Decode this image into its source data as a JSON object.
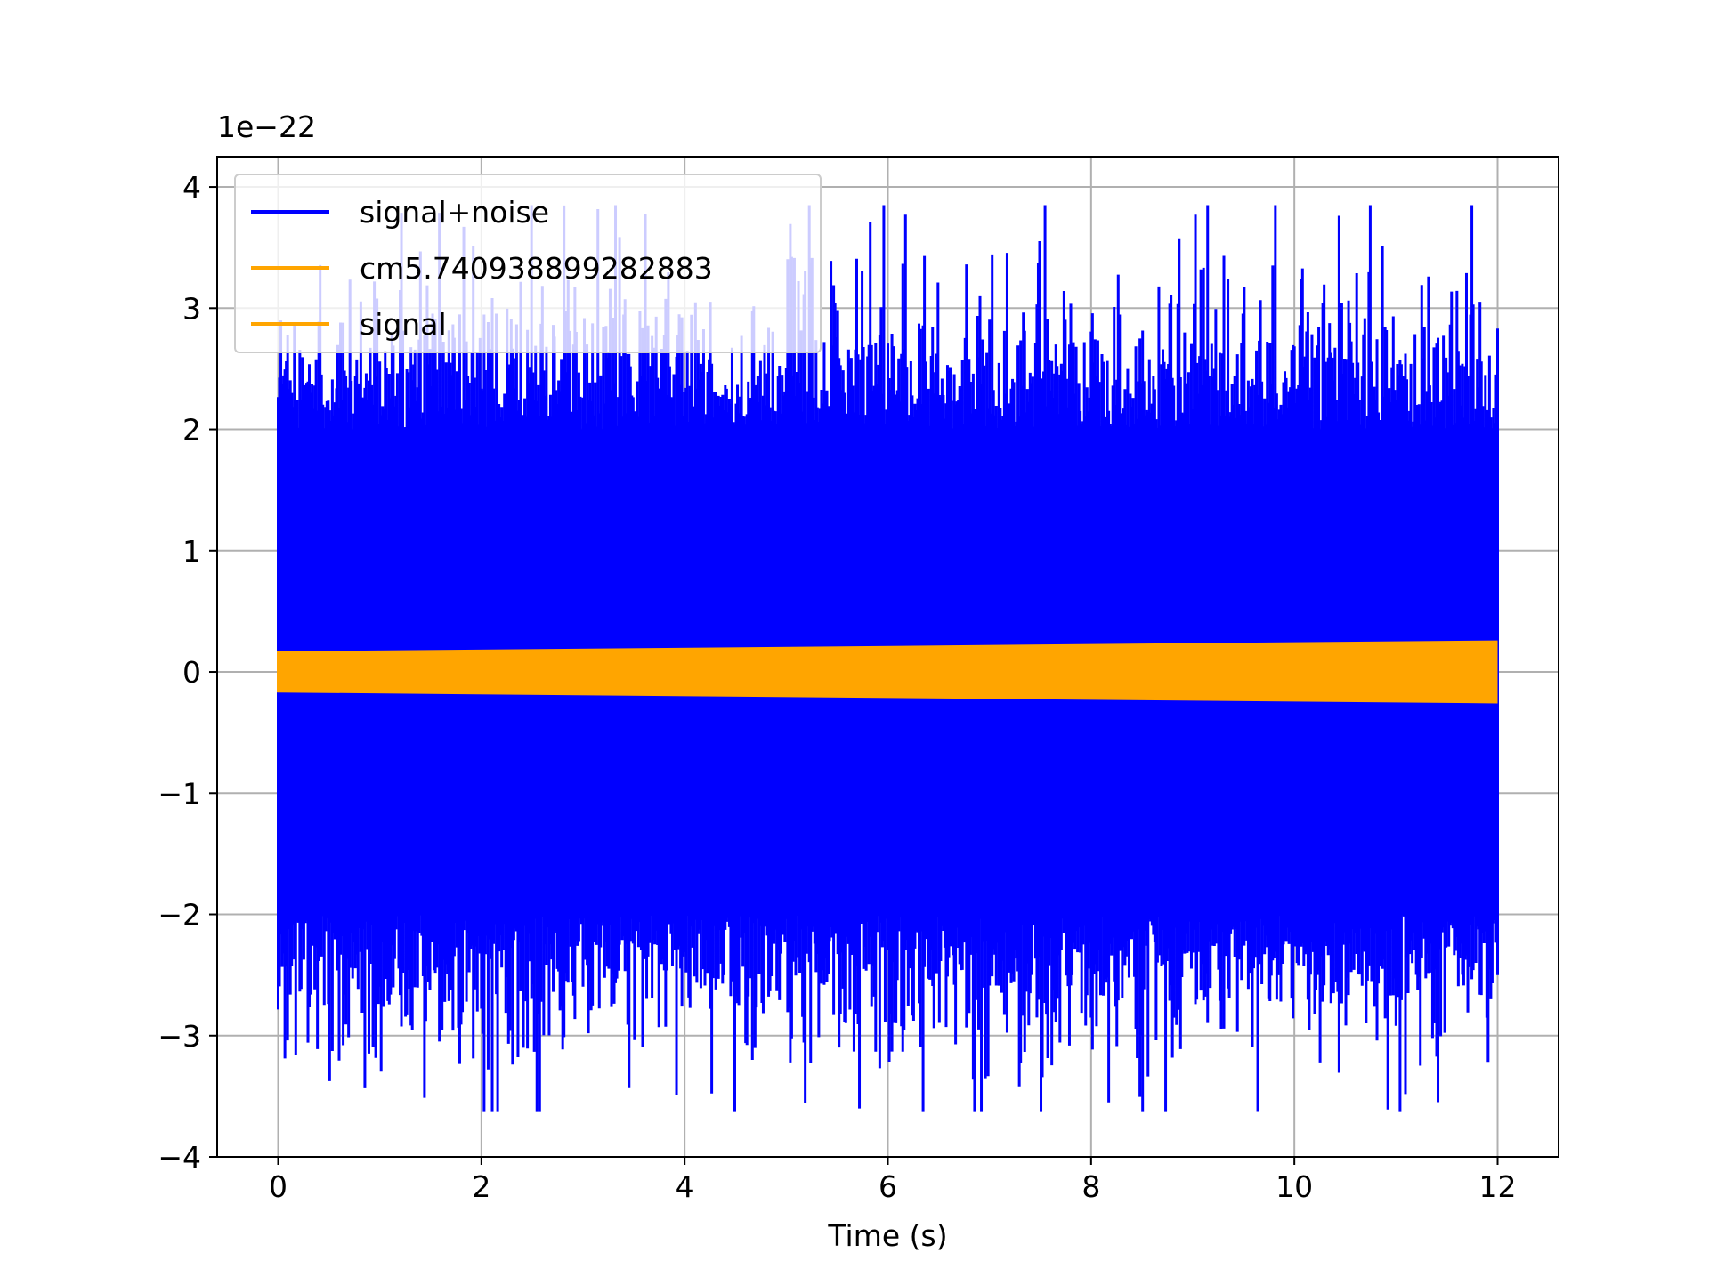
{
  "chart_data": {
    "type": "line",
    "title": "",
    "xlabel": "Time (s)",
    "ylabel": "",
    "y_offset_label": "1e−22",
    "xlim": [
      -0.6,
      12.6
    ],
    "ylim": [
      -4.0,
      4.25
    ],
    "x_ticks": [
      0,
      2,
      4,
      6,
      8,
      10,
      12
    ],
    "x_tick_labels": [
      "0",
      "2",
      "4",
      "6",
      "8",
      "10",
      "12"
    ],
    "y_ticks": [
      -4,
      -3,
      -2,
      -1,
      0,
      1,
      2,
      3,
      4
    ],
    "y_tick_labels": [
      "−4",
      "−3",
      "−2",
      "−1",
      "0",
      "1",
      "2",
      "3",
      "4"
    ],
    "grid": true,
    "legend_position": "upper-left",
    "series": [
      {
        "name": "signal+noise",
        "color": "#0000ff",
        "kind": "noise-band",
        "x_range": [
          0,
          12
        ],
        "typical_amplitude": 2.0,
        "peak_max": 3.85,
        "peak_min": -3.63
      },
      {
        "name": "cm5.740938899282883",
        "color": "#ffa500",
        "kind": "envelope-band",
        "x_range": [
          0,
          12
        ],
        "amplitude_start": 0.17,
        "amplitude_end": 0.26
      },
      {
        "name": "signal",
        "color": "#ffa500",
        "kind": "envelope-band",
        "x_range": [
          0,
          12
        ],
        "amplitude_start": 0.17,
        "amplitude_end": 0.26
      }
    ]
  }
}
